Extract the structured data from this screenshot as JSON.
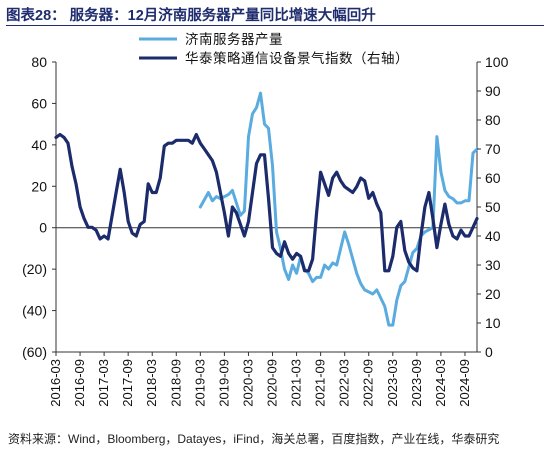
{
  "header": {
    "title": "图表28：  服务器：12月济南服务器产量同比增速大幅回升"
  },
  "footer": {
    "source": "资料来源：Wind，Bloomberg，Datayes，iFind，海关总署，百度指数，产业在线，华泰研究"
  },
  "chart_data": {
    "type": "line",
    "legend_position": "top-right",
    "grid": false,
    "x_ticks": [
      "2016-03",
      "2016-09",
      "2017-03",
      "2017-09",
      "2018-03",
      "2018-09",
      "2019-03",
      "2019-09",
      "2020-03",
      "2020-09",
      "2021-03",
      "2021-09",
      "2022-03",
      "2022-09",
      "2023-03",
      "2023-09",
      "2024-03",
      "2024-09"
    ],
    "x_range": [
      "2016-03",
      "2024-12"
    ],
    "y_left": {
      "min": -60,
      "max": 80,
      "ticks": [
        -60,
        -40,
        -20,
        0,
        20,
        40,
        60,
        80
      ],
      "tick_labels": [
        "(60)",
        "(40)",
        "(20)",
        "0",
        "20",
        "40",
        "60",
        "80"
      ]
    },
    "y_right": {
      "min": 0,
      "max": 100,
      "ticks": [
        0,
        10,
        20,
        30,
        40,
        50,
        60,
        70,
        80,
        90,
        100
      ]
    },
    "colors": {
      "production": "#5aabdf",
      "index": "#1b2b6b"
    },
    "series": [
      {
        "name": "济南服务器产量",
        "axis": "left",
        "points": [
          [
            "2019-03",
            10
          ],
          [
            "2019-05",
            17
          ],
          [
            "2019-06",
            13
          ],
          [
            "2019-07",
            15
          ],
          [
            "2019-08",
            14
          ],
          [
            "2019-10",
            16
          ],
          [
            "2019-11",
            18
          ],
          [
            "2019-12",
            12
          ],
          [
            "2020-01",
            6
          ],
          [
            "2020-02",
            8
          ],
          [
            "2020-03",
            44
          ],
          [
            "2020-04",
            55
          ],
          [
            "2020-05",
            58
          ],
          [
            "2020-06",
            65
          ],
          [
            "2020-07",
            50
          ],
          [
            "2020-08",
            48
          ],
          [
            "2020-09",
            30
          ],
          [
            "2020-10",
            -2
          ],
          [
            "2020-11",
            -10
          ],
          [
            "2020-12",
            -20
          ],
          [
            "2021-01",
            -25
          ],
          [
            "2021-02",
            -18
          ],
          [
            "2021-03",
            -22
          ],
          [
            "2021-04",
            -14
          ],
          [
            "2021-05",
            -20
          ],
          [
            "2021-06",
            -22
          ],
          [
            "2021-07",
            -26
          ],
          [
            "2021-08",
            -24
          ],
          [
            "2021-09",
            -24
          ],
          [
            "2021-10",
            -18
          ],
          [
            "2021-11",
            -20
          ],
          [
            "2021-12",
            -17
          ],
          [
            "2022-01",
            -18
          ],
          [
            "2022-02",
            -10
          ],
          [
            "2022-03",
            -2
          ],
          [
            "2022-04",
            -8
          ],
          [
            "2022-05",
            -15
          ],
          [
            "2022-06",
            -22
          ],
          [
            "2022-07",
            -27
          ],
          [
            "2022-08",
            -30
          ],
          [
            "2022-09",
            -31
          ],
          [
            "2022-10",
            -32
          ],
          [
            "2022-11",
            -30
          ],
          [
            "2022-12",
            -34
          ],
          [
            "2023-01",
            -38
          ],
          [
            "2023-02",
            -47
          ],
          [
            "2023-03",
            -47
          ],
          [
            "2023-04",
            -35
          ],
          [
            "2023-05",
            -28
          ],
          [
            "2023-06",
            -26
          ],
          [
            "2023-07",
            -19
          ],
          [
            "2023-08",
            -12
          ],
          [
            "2023-09",
            -10
          ],
          [
            "2023-10",
            -4
          ],
          [
            "2023-11",
            -2
          ],
          [
            "2023-12",
            -1
          ],
          [
            "2024-01",
            0
          ],
          [
            "2024-02",
            44
          ],
          [
            "2024-03",
            27
          ],
          [
            "2024-04",
            18
          ],
          [
            "2024-05",
            15
          ],
          [
            "2024-06",
            14
          ],
          [
            "2024-07",
            12
          ],
          [
            "2024-08",
            12
          ],
          [
            "2024-09",
            13
          ],
          [
            "2024-10",
            13
          ],
          [
            "2024-11",
            36
          ],
          [
            "2024-12",
            38
          ]
        ]
      },
      {
        "name": "华泰策略通信设备景气指数（右轴）",
        "axis": "right",
        "points": [
          [
            "2016-03",
            74
          ],
          [
            "2016-04",
            75
          ],
          [
            "2016-05",
            74
          ],
          [
            "2016-06",
            72
          ],
          [
            "2016-07",
            64
          ],
          [
            "2016-08",
            58
          ],
          [
            "2016-09",
            50
          ],
          [
            "2016-10",
            46
          ],
          [
            "2016-11",
            43
          ],
          [
            "2016-12",
            43
          ],
          [
            "2017-01",
            42
          ],
          [
            "2017-02",
            39
          ],
          [
            "2017-03",
            40
          ],
          [
            "2017-04",
            39
          ],
          [
            "2017-05",
            47
          ],
          [
            "2017-06",
            55
          ],
          [
            "2017-07",
            63
          ],
          [
            "2017-08",
            55
          ],
          [
            "2017-09",
            45
          ],
          [
            "2017-10",
            41
          ],
          [
            "2017-11",
            40
          ],
          [
            "2017-12",
            44
          ],
          [
            "2018-01",
            45
          ],
          [
            "2018-02",
            58
          ],
          [
            "2018-03",
            55
          ],
          [
            "2018-04",
            55
          ],
          [
            "2018-05",
            60
          ],
          [
            "2018-06",
            71
          ],
          [
            "2018-07",
            72
          ],
          [
            "2018-08",
            72
          ],
          [
            "2018-09",
            73
          ],
          [
            "2018-10",
            73
          ],
          [
            "2018-11",
            73
          ],
          [
            "2018-12",
            73
          ],
          [
            "2019-01",
            72
          ],
          [
            "2019-02",
            75
          ],
          [
            "2019-03",
            72
          ],
          [
            "2019-04",
            70
          ],
          [
            "2019-05",
            68
          ],
          [
            "2019-06",
            66
          ],
          [
            "2019-07",
            62
          ],
          [
            "2019-08",
            55
          ],
          [
            "2019-09",
            48
          ],
          [
            "2019-10",
            40
          ],
          [
            "2019-11",
            50
          ],
          [
            "2019-12",
            48
          ],
          [
            "2020-01",
            44
          ],
          [
            "2020-02",
            40
          ],
          [
            "2020-03",
            45
          ],
          [
            "2020-04",
            55
          ],
          [
            "2020-05",
            65
          ],
          [
            "2020-06",
            68
          ],
          [
            "2020-07",
            68
          ],
          [
            "2020-08",
            53
          ],
          [
            "2020-09",
            36
          ],
          [
            "2020-10",
            34
          ],
          [
            "2020-11",
            33
          ],
          [
            "2020-12",
            38
          ],
          [
            "2021-01",
            34
          ],
          [
            "2021-02",
            32
          ],
          [
            "2021-03",
            34
          ],
          [
            "2021-04",
            33
          ],
          [
            "2021-05",
            28
          ],
          [
            "2021-06",
            28
          ],
          [
            "2021-07",
            32
          ],
          [
            "2021-08",
            48
          ],
          [
            "2021-09",
            62
          ],
          [
            "2021-10",
            58
          ],
          [
            "2021-11",
            54
          ],
          [
            "2021-12",
            60
          ],
          [
            "2022-01",
            62
          ],
          [
            "2022-02",
            59
          ],
          [
            "2022-03",
            57
          ],
          [
            "2022-04",
            56
          ],
          [
            "2022-05",
            55
          ],
          [
            "2022-06",
            57
          ],
          [
            "2022-07",
            60
          ],
          [
            "2022-08",
            59
          ],
          [
            "2022-09",
            53
          ],
          [
            "2022-10",
            55
          ],
          [
            "2022-11",
            51
          ],
          [
            "2022-12",
            48
          ],
          [
            "2023-01",
            28
          ],
          [
            "2023-02",
            28
          ],
          [
            "2023-03",
            33
          ],
          [
            "2023-04",
            43
          ],
          [
            "2023-05",
            45
          ],
          [
            "2023-06",
            35
          ],
          [
            "2023-07",
            31
          ],
          [
            "2023-08",
            29
          ],
          [
            "2023-09",
            28
          ],
          [
            "2023-10",
            40
          ],
          [
            "2023-11",
            50
          ],
          [
            "2023-12",
            55
          ],
          [
            "2024-01",
            46
          ],
          [
            "2024-02",
            36
          ],
          [
            "2024-03",
            44
          ],
          [
            "2024-04",
            51
          ],
          [
            "2024-05",
            44
          ],
          [
            "2024-06",
            40
          ],
          [
            "2024-07",
            39
          ],
          [
            "2024-08",
            42
          ],
          [
            "2024-09",
            40
          ],
          [
            "2024-10",
            40
          ],
          [
            "2024-11",
            43
          ],
          [
            "2024-12",
            46
          ]
        ]
      }
    ]
  }
}
